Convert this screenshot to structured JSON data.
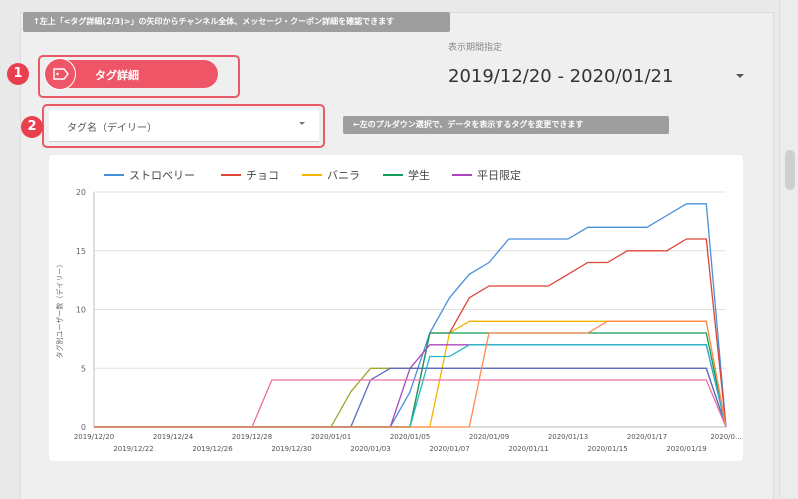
{
  "banner_note": "↑左上「<タグ詳細(2/3)>」の矢印からチャンネル全体、メッセージ・クーポン詳細を確認できます",
  "side_note": "←左のプルダウン選択で、データを表示するタグを変更できます",
  "markers": [
    "1",
    "2"
  ],
  "tag_button": {
    "label": "タグ詳細",
    "icon": "tag-icon"
  },
  "tag_select": {
    "label": "タグ名（デイリー）"
  },
  "period": {
    "label": "表示期間指定",
    "value": "2019/12/20 - 2020/01/21"
  },
  "colors": {
    "accent": "#ee5566",
    "note_bg": "#9e9e9e"
  },
  "chart_data": {
    "type": "line",
    "ylabel": "タグ別ユーザー数（デイリー）",
    "xlabel": "",
    "ylim": [
      0,
      20
    ],
    "yticks": [
      0,
      5,
      10,
      15,
      20
    ],
    "grid": true,
    "legend_position": "top",
    "x": [
      "2019/12/20",
      "2019/12/21",
      "2019/12/22",
      "2019/12/23",
      "2019/12/24",
      "2019/12/25",
      "2019/12/26",
      "2019/12/27",
      "2019/12/28",
      "2019/12/29",
      "2019/12/30",
      "2019/12/31",
      "2020/01/01",
      "2020/01/02",
      "2020/01/03",
      "2020/01/04",
      "2020/01/05",
      "2020/01/06",
      "2020/01/07",
      "2020/01/08",
      "2020/01/09",
      "2020/01/10",
      "2020/01/11",
      "2020/01/12",
      "2020/01/13",
      "2020/01/14",
      "2020/01/15",
      "2020/01/16",
      "2020/01/17",
      "2020/01/18",
      "2020/01/19",
      "2020/01/20",
      "2020/01/21"
    ],
    "x_tick_labels_top": [
      "2019/12/20",
      "2019/12/24",
      "2019/12/28",
      "2020/01/01",
      "2020/01/05",
      "2020/01/09",
      "2020/01/13",
      "2020/01/17",
      "2020/0..."
    ],
    "x_tick_labels_bottom": [
      "2019/12/22",
      "2019/12/26",
      "2019/12/30",
      "2020/01/03",
      "2020/01/07",
      "2020/01/11",
      "2020/01/15",
      "2020/01/19"
    ],
    "series": [
      {
        "name": "ストロベリー",
        "color": "#4a90d9",
        "values": [
          0,
          0,
          0,
          0,
          0,
          0,
          0,
          0,
          0,
          0,
          0,
          0,
          0,
          0,
          0,
          0,
          3,
          8,
          11,
          13,
          14,
          16,
          16,
          16,
          16,
          17,
          17,
          17,
          17,
          18,
          19,
          19,
          0
        ]
      },
      {
        "name": "チョコ",
        "color": "#db4437",
        "values": [
          0,
          0,
          0,
          0,
          0,
          0,
          0,
          0,
          0,
          0,
          0,
          0,
          0,
          0,
          0,
          0,
          0,
          8,
          8,
          11,
          12,
          12,
          12,
          12,
          13,
          14,
          14,
          15,
          15,
          15,
          16,
          16,
          0
        ]
      },
      {
        "name": "バニラ",
        "color": "#f4b400",
        "values": [
          0,
          0,
          0,
          0,
          0,
          0,
          0,
          0,
          0,
          0,
          0,
          0,
          0,
          0,
          0,
          0,
          0,
          0,
          8,
          9,
          9,
          9,
          9,
          9,
          9,
          9,
          9,
          9,
          9,
          9,
          9,
          9,
          0
        ]
      },
      {
        "name": "学生",
        "color": "#0f9d58",
        "values": [
          0,
          0,
          0,
          0,
          0,
          0,
          0,
          0,
          0,
          0,
          0,
          0,
          0,
          0,
          0,
          0,
          0,
          8,
          8,
          8,
          8,
          8,
          8,
          8,
          8,
          8,
          8,
          8,
          8,
          8,
          8,
          8,
          0
        ]
      },
      {
        "name": "平日限定",
        "color": "#ab47bc",
        "values": [
          0,
          0,
          0,
          0,
          0,
          0,
          0,
          0,
          0,
          0,
          0,
          0,
          0,
          0,
          0,
          0,
          5,
          7,
          7,
          7,
          7,
          7,
          7,
          7,
          7,
          7,
          7,
          7,
          7,
          7,
          7,
          7,
          0
        ]
      },
      {
        "name": "",
        "color": "#9aa82e",
        "values": [
          0,
          0,
          0,
          0,
          0,
          0,
          0,
          0,
          0,
          0,
          0,
          0,
          0,
          3,
          5,
          5,
          5,
          5,
          5,
          5,
          5,
          5,
          5,
          5,
          5,
          5,
          5,
          5,
          5,
          5,
          5,
          5,
          0
        ]
      },
      {
        "name": "",
        "color": "#5c6bc0",
        "values": [
          0,
          0,
          0,
          0,
          0,
          0,
          0,
          0,
          0,
          0,
          0,
          0,
          0,
          0,
          4,
          5,
          5,
          5,
          5,
          5,
          5,
          5,
          5,
          5,
          5,
          5,
          5,
          5,
          5,
          5,
          5,
          5,
          0
        ]
      },
      {
        "name": "",
        "color": "#ec6fa4",
        "values": [
          0,
          0,
          0,
          0,
          0,
          0,
          0,
          0,
          0,
          4,
          4,
          4,
          4,
          4,
          4,
          4,
          4,
          4,
          4,
          4,
          4,
          4,
          4,
          4,
          4,
          4,
          4,
          4,
          4,
          4,
          4,
          4,
          0
        ]
      },
      {
        "name": "",
        "color": "#26b6c6",
        "values": [
          0,
          0,
          0,
          0,
          0,
          0,
          0,
          0,
          0,
          0,
          0,
          0,
          0,
          0,
          0,
          0,
          0,
          6,
          6,
          7,
          7,
          7,
          7,
          7,
          7,
          7,
          7,
          7,
          7,
          7,
          7,
          7,
          0
        ]
      },
      {
        "name": "",
        "color": "#ff8a50",
        "values": [
          0,
          0,
          0,
          0,
          0,
          0,
          0,
          0,
          0,
          0,
          0,
          0,
          0,
          0,
          0,
          0,
          0,
          0,
          0,
          0,
          8,
          8,
          8,
          8,
          8,
          8,
          9,
          9,
          9,
          9,
          9,
          9,
          0
        ]
      }
    ]
  }
}
